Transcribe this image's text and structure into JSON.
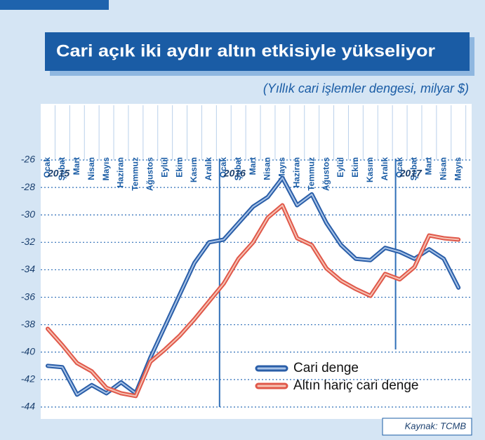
{
  "chart_data": {
    "type": "line",
    "title": "Cari açık iki aydır altın etkisiyle yükseliyor",
    "subtitle": "(Yıllık cari işlemler dengesi, milyar $)",
    "source": "Kaynak: TCMB",
    "annotations": [
      "2015",
      "2016",
      "2017"
    ],
    "categories": [
      "Ocak",
      "Şubat",
      "Mart",
      "Nisan",
      "Mayıs",
      "Haziran",
      "Temmuz",
      "Ağustos",
      "Eylül",
      "Ekim",
      "Kasım",
      "Aralık",
      "Ocak",
      "Şubat",
      "Mart",
      "Nisan",
      "Mayıs",
      "Haziran",
      "Temmuz",
      "Ağustos",
      "Eylül",
      "Ekim",
      "Kasım",
      "Aralık",
      "Ocak",
      "Şubat",
      "Mart",
      "Nisan",
      "Mayıs"
    ],
    "series": [
      {
        "name": "Cari denge",
        "color": "#2a5ea8",
        "values": [
          -41.0,
          -41.1,
          -43.1,
          -42.4,
          -43.0,
          -42.2,
          -43.0,
          -40.4,
          -38.1,
          -35.8,
          -33.5,
          -32.0,
          -31.8,
          -30.6,
          -29.4,
          -28.7,
          -27.3,
          -29.3,
          -28.5,
          -30.6,
          -32.2,
          -33.2,
          -33.3,
          -32.4,
          -32.7,
          -33.2,
          -32.5,
          -33.2,
          -35.3
        ]
      },
      {
        "name": "Altın hariç cari denge",
        "color": "#e0584a",
        "values": [
          -38.3,
          -39.5,
          -40.8,
          -41.4,
          -42.6,
          -43.0,
          -43.2,
          -40.7,
          -39.8,
          -38.8,
          -37.6,
          -36.3,
          -35.0,
          -33.2,
          -32.0,
          -30.2,
          -29.3,
          -31.7,
          -32.2,
          -33.9,
          -34.8,
          -35.4,
          -35.9,
          -34.3,
          -34.7,
          -33.8,
          -31.5,
          -31.7,
          -31.8
        ]
      }
    ],
    "ylim": [
      -44,
      -26
    ],
    "yticks": [
      -26,
      -28,
      -30,
      -32,
      -34,
      -36,
      -38,
      -40,
      -42,
      -44
    ],
    "grid": true,
    "legend": "bottom-right"
  }
}
